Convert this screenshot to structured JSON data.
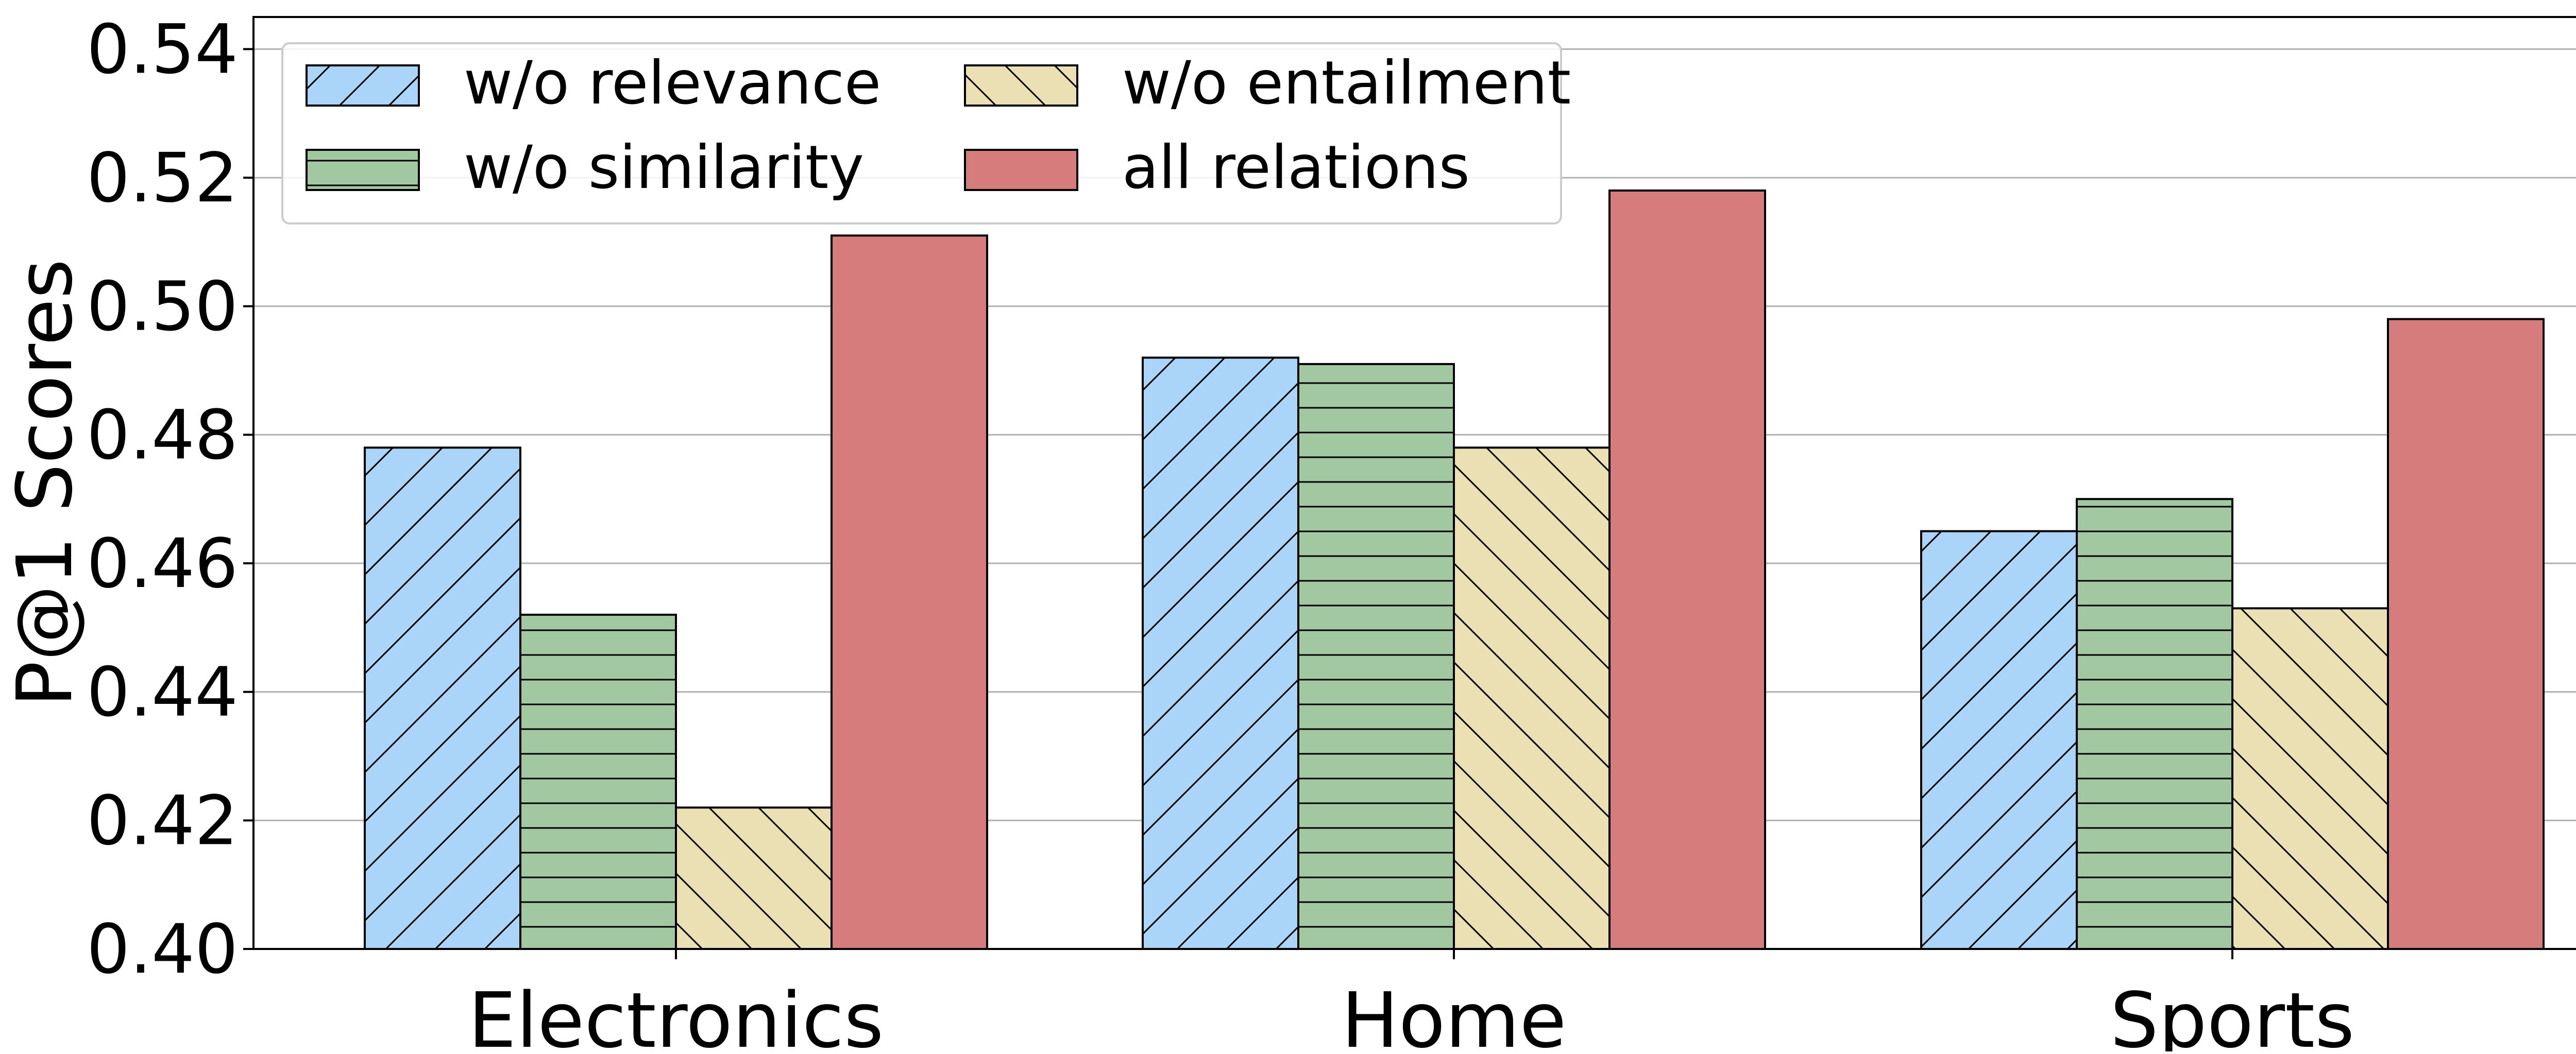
{
  "chart_data": {
    "type": "bar",
    "title": "",
    "xlabel": "",
    "ylabel": "P@1 Scores",
    "categories": [
      "Electronics",
      "Home",
      "Sports"
    ],
    "ylim": [
      0.4,
      0.545
    ],
    "yticks": [
      "0.40",
      "0.42",
      "0.44",
      "0.46",
      "0.48",
      "0.50",
      "0.52",
      "0.54"
    ],
    "grid": "horizontal",
    "legend_position": "top-left",
    "series": [
      {
        "name": "w/o relevance",
        "values": [
          0.478,
          0.492,
          0.465
        ],
        "color": "#aad4f8",
        "hatch": "diagonal-up"
      },
      {
        "name": "w/o similarity",
        "values": [
          0.452,
          0.491,
          0.47
        ],
        "color": "#a2c8a2",
        "hatch": "horizontal"
      },
      {
        "name": "w/o entailment",
        "values": [
          0.422,
          0.478,
          0.453
        ],
        "color": "#eae0b4",
        "hatch": "diagonal-down"
      },
      {
        "name": "all relations",
        "values": [
          0.511,
          0.518,
          0.498
        ],
        "color": "#d67c7c",
        "hatch": "none"
      }
    ]
  }
}
